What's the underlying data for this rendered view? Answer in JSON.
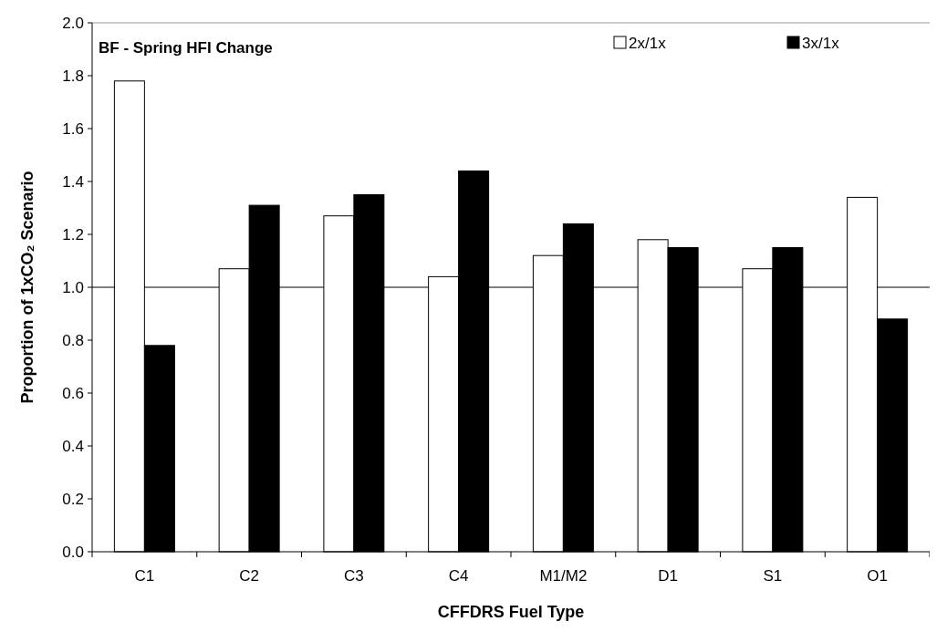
{
  "chart_data": {
    "type": "bar",
    "title": "BF - Spring HFI Change",
    "xlabel": "CFFDRS Fuel Type",
    "ylabel": "Proportion of 1xCO₂ Scenario",
    "categories": [
      "C1",
      "C2",
      "C3",
      "C4",
      "M1/M2",
      "D1",
      "S1",
      "O1"
    ],
    "series": [
      {
        "name": "2x/1x",
        "color": "#ffffff",
        "values": [
          1.78,
          1.07,
          1.27,
          1.04,
          1.12,
          1.18,
          1.07,
          1.34
        ]
      },
      {
        "name": "3x/1x",
        "color": "#000000",
        "values": [
          0.78,
          1.31,
          1.35,
          1.44,
          1.24,
          1.15,
          1.15,
          0.88
        ]
      }
    ],
    "ylim": [
      0,
      2
    ],
    "yticks": [
      {
        "value": 0,
        "label": "0.0"
      },
      {
        "value": 0.2,
        "label": "0.2"
      },
      {
        "value": 0.4,
        "label": "0.4"
      },
      {
        "value": 0.6,
        "label": "0.6"
      },
      {
        "value": 0.8,
        "label": "0.8"
      },
      {
        "value": 1,
        "label": "1.0"
      },
      {
        "value": 1.2,
        "label": "1.2"
      },
      {
        "value": 1.4,
        "label": "1.4"
      },
      {
        "value": 1.6,
        "label": "1.6"
      },
      {
        "value": 1.8,
        "label": "1.8"
      },
      {
        "value": 2,
        "label": "2.0"
      }
    ],
    "ref_lines": [
      {
        "axis": "y",
        "value": 1,
        "color": "#000000"
      }
    ],
    "legend": "top right",
    "grid": false
  }
}
